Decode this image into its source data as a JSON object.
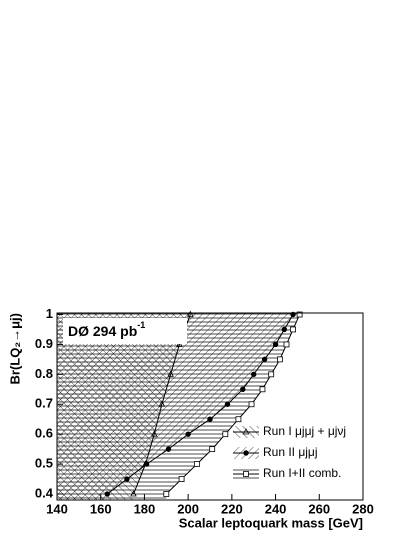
{
  "chart_data": {
    "type": "line",
    "title": "DØ 294 pb",
    "title_sup": "-1",
    "xlabel": "Scalar leptoquark mass [GeV]",
    "ylabel": "Br(LQ₂→μj)",
    "xlim": [
      140,
      280
    ],
    "ylim": [
      0.38,
      1.005
    ],
    "xticks": [
      140,
      160,
      180,
      200,
      220,
      240,
      260,
      280
    ],
    "yticks": [
      0.4,
      0.5,
      0.6,
      0.7,
      0.8,
      0.9,
      1
    ],
    "series": [
      {
        "name": "Run I+II comb.",
        "color": "#000000",
        "marker": "square",
        "x": [
          190,
          197,
          204,
          211,
          217,
          223,
          229,
          234,
          238,
          242,
          245,
          248,
          251
        ],
        "values": [
          0.4,
          0.45,
          0.5,
          0.55,
          0.6,
          0.65,
          0.7,
          0.75,
          0.8,
          0.85,
          0.9,
          0.95,
          1
        ]
      },
      {
        "name": "Run II μjμj",
        "color": "#000000",
        "marker": "circle",
        "x": [
          163,
          172,
          181,
          191,
          200,
          210,
          218,
          225,
          230,
          235,
          240,
          244,
          248
        ],
        "values": [
          0.4,
          0.45,
          0.5,
          0.55,
          0.6,
          0.65,
          0.7,
          0.75,
          0.8,
          0.85,
          0.9,
          0.95,
          1
        ]
      },
      {
        "name": "Run I μjμj + μjνj",
        "color": "#000000",
        "marker": "triangle",
        "x": [
          175,
          180.5,
          184.5,
          188,
          192,
          196,
          201
        ],
        "values": [
          0.4,
          0.5,
          0.6,
          0.7,
          0.8,
          0.9,
          1
        ]
      }
    ]
  }
}
